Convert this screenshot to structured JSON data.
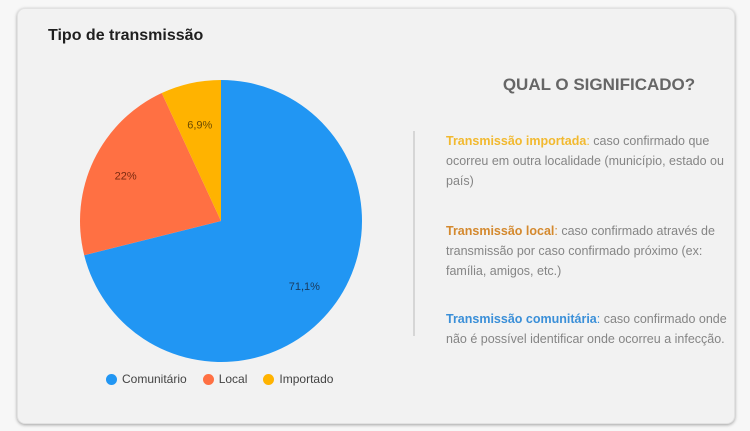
{
  "card": {
    "title": "Tipo de transmissão"
  },
  "chart_data": {
    "type": "pie",
    "title": "Tipo de transmissão",
    "categories": [
      "Comunitário",
      "Local",
      "Importado"
    ],
    "values": [
      71.1,
      22,
      6.9
    ],
    "labels": [
      "71,1%",
      "22%",
      "6,9%"
    ],
    "colors": [
      "#2196F3",
      "#FF7043",
      "#FFB300"
    ],
    "legend_position": "bottom",
    "start_angle_deg": 0,
    "direction": "clockwise"
  },
  "legend": {
    "items": [
      {
        "label": "Comunitário",
        "color": "#2196F3"
      },
      {
        "label": "Local",
        "color": "#FF7043"
      },
      {
        "label": "Importado",
        "color": "#FFB300"
      }
    ]
  },
  "info": {
    "heading": "QUAL O SIGNIFICADO?",
    "definitions": [
      {
        "term": "Transmissão importada",
        "colon": ":",
        "text": " caso confirmado que ocorreu em outra localidade (município, estado ou país)",
        "color": "#F2B92F"
      },
      {
        "term": "Transmissão local",
        "colon": ":",
        "text": " caso confirmado através de transmissão por caso confirmado próximo (ex: família, amigos, etc.)",
        "color": "#D4892E"
      },
      {
        "term": "Transmissão comunitária",
        "colon": ":",
        "text": " caso confirmado onde não é possível identificar onde ocorreu a infecção.",
        "color": "#3A8FD8"
      }
    ]
  }
}
